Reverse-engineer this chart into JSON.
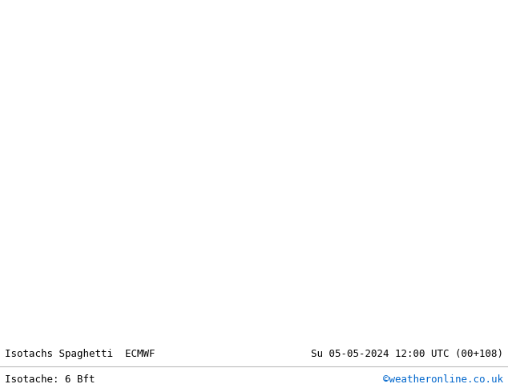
{
  "title_left": "Isotachs Spaghetti  ECMWF",
  "title_right": "Su 05-05-2024 12:00 UTC (00+108)",
  "subtitle_left": "Isotache: 6 Bft",
  "subtitle_right": "©weatheronline.co.uk",
  "subtitle_right_color": "#0066cc",
  "land_color": "#ccff99",
  "sea_color": "#f0f0f0",
  "border_color": "#888888",
  "coastline_color": "#888888",
  "label_bg": "#e0e0e0",
  "label_fontsize": 9,
  "title_fontsize": 9,
  "fig_width": 6.34,
  "fig_height": 4.9,
  "dpi": 100,
  "map_extent": [
    -25,
    45,
    28,
    72
  ],
  "spaghetti_colors": [
    "#ff0000",
    "#00cc00",
    "#0000ff",
    "#ff8800",
    "#aa00aa",
    "#00aaaa",
    "#aaaa00",
    "#ff00ff",
    "#00ff00",
    "#8800ff",
    "#ff0088",
    "#0088ff",
    "#ff4400",
    "#00ff88",
    "#4400ff",
    "#ffaa00",
    "#00ffaa",
    "#aa0000",
    "#0000aa",
    "#aa6600",
    "#00aa66",
    "#6600aa",
    "#aa0066",
    "#0066aa",
    "#66aa00"
  ],
  "n_members": 51,
  "seed": 12345,
  "lw": 0.7,
  "alpha": 0.85
}
